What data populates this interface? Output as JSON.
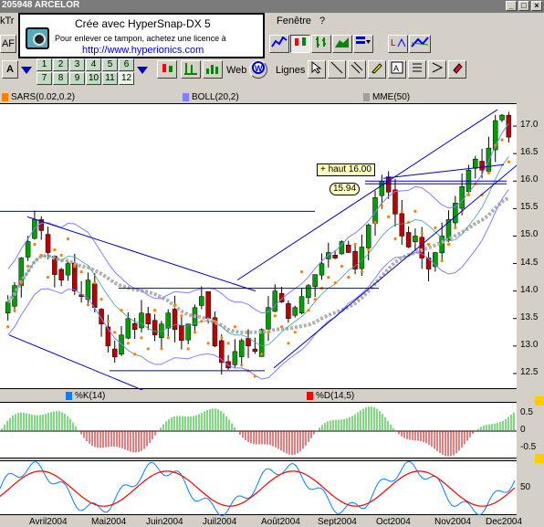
{
  "window": {
    "title": "205948 ARCELOR"
  },
  "menu": {
    "item_left": "kTr",
    "fenetre": "Fenêtre",
    "help": "?"
  },
  "hypersnap": {
    "title": "Crée avec HyperSnap-DX 5",
    "subtitle": "Pour enlever ce tampon, achetez une licence à",
    "url": "http://www.hyperionics.com"
  },
  "toolbar": {
    "symbol_prefix": "AF",
    "font_btn": "A",
    "web_label": "Web",
    "lignes_label": "Lignes",
    "numbers": [
      "2",
      "3",
      "4",
      "5",
      "6",
      "7",
      "8",
      "9",
      "10",
      "11",
      "12"
    ]
  },
  "indicators": {
    "sars": "SARS(0.02,0.2)",
    "boll": "BOLL(20,2)",
    "mme": "MME(50)",
    "k": "%K(14)",
    "d": "%D(14,5)"
  },
  "colors": {
    "sars": "#ff8000",
    "boll": "#8080ff",
    "mme": "#a0a0a0",
    "k": "#0080ff",
    "d": "#ff0000"
  },
  "annotations": {
    "haut": "+ haut 16.00",
    "level": "15.94"
  },
  "chart_data": [
    {
      "type": "candlestick",
      "y_ticks": [
        "17.0",
        "16.5",
        "16.0",
        "15.5",
        "15.0",
        "14.5",
        "14.0",
        "13.5",
        "13.0",
        "12.5"
      ],
      "x_ticks": [
        "Avril2004",
        "Mai2004",
        "Juin2004",
        "Juillet2004",
        "Août2004",
        "Septembre2004",
        "Octobre2004",
        "Novembre2004",
        "Décembre2004"
      ],
      "x_ticks_display": [
        "Avril2004",
        "Mai2004",
        "Juin2004",
        "Juil2004",
        "Août2004",
        "Sept2004",
        "Oct2004",
        "Nov2004",
        "Dec2004"
      ],
      "ylim": [
        12.2,
        17.4
      ],
      "close": [
        13.8,
        14.1,
        14.6,
        14.9,
        15.3,
        15.1,
        14.7,
        14.3,
        14.2,
        14.5,
        14.0,
        13.9,
        14.2,
        13.7,
        13.4,
        13.0,
        12.8,
        13.2,
        13.5,
        13.3,
        13.6,
        13.4,
        13.2,
        13.4,
        13.6,
        13.3,
        13.1,
        13.4,
        13.7,
        13.9,
        13.5,
        13.0,
        12.7,
        12.6,
        12.9,
        13.1,
        13.0,
        12.9,
        13.3,
        13.7,
        14.0,
        13.8,
        13.5,
        13.7,
        13.9,
        14.1,
        14.3,
        14.5,
        14.7,
        14.6,
        14.9,
        14.7,
        14.4,
        14.8,
        15.2,
        15.7,
        16.0,
        15.8,
        15.4,
        15.0,
        14.8,
        15.0,
        14.6,
        14.4,
        14.7,
        15.0,
        15.3,
        15.6,
        15.9,
        16.2,
        16.4,
        16.2,
        16.6,
        17.1,
        17.2,
        16.8
      ]
    },
    {
      "type": "line",
      "title": "%K(14)",
      "y_ticks": [
        "0.5",
        "0",
        "-0.5"
      ],
      "ylim": [
        -0.8,
        0.8
      ]
    },
    {
      "type": "line",
      "title": "%D(14,5)",
      "y_ticks": [
        "50"
      ],
      "ylim": [
        0,
        100
      ]
    }
  ]
}
